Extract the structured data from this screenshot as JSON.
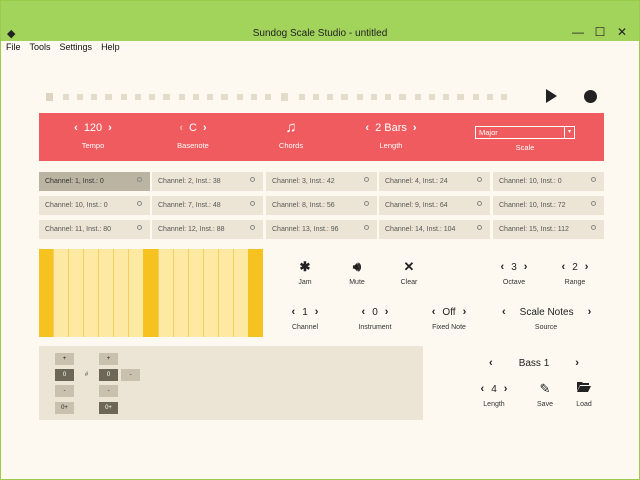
{
  "window": {
    "title": "Sundog Scale Studio - untitled",
    "controls": [
      "—",
      "☐",
      "✕"
    ]
  },
  "menu": [
    "File",
    "Tools",
    "Settings",
    "Help"
  ],
  "redbar": {
    "tempo": {
      "value": "120",
      "label": "Tempo"
    },
    "basenote": {
      "value": "C",
      "label": "Basenote"
    },
    "chords": {
      "label": "Chords"
    },
    "length": {
      "value": "2 Bars",
      "label": "Length"
    },
    "scale": {
      "value": "Major",
      "label": "Scale"
    }
  },
  "channels": [
    "Channel: 1, Inst.: 0",
    "Channel: 2, Inst.: 38",
    "Channel: 3, Inst.: 42",
    "Channel: 4, Inst.: 24",
    "Channel: 10, Inst.: 0",
    "Channel: 10, Inst.: 0",
    "Channel: 7, Inst.: 48",
    "Channel: 8, Inst.: 56",
    "Channel: 9, Inst.: 64",
    "Channel: 10, Inst.: 72",
    "Channel: 11, Inst.: 80",
    "Channel: 12, Inst.: 88",
    "Channel: 13, Inst.: 96",
    "Channel: 14, Inst.: 104",
    "Channel: 15, Inst.: 112"
  ],
  "controls": {
    "jam": "Jam",
    "mute": "Mute",
    "clear": "Clear",
    "octave": {
      "value": "3",
      "label": "Octave"
    },
    "range": {
      "value": "2",
      "label": "Range"
    },
    "channel": {
      "value": "1",
      "label": "Channel"
    },
    "instrument": {
      "value": "0",
      "label": "Instrument"
    },
    "fixed_note": {
      "value": "Off",
      "label": "Fixed Note"
    },
    "source": {
      "value": "Scale Notes",
      "label": "Source"
    }
  },
  "steps": {
    "col1": [
      "+",
      "0",
      "-",
      "0+"
    ],
    "sharp": "#",
    "col2": [
      "+",
      "0",
      "-",
      "0+"
    ],
    "minus_side": "-"
  },
  "preset": {
    "name": "Bass 1",
    "length": {
      "value": "4",
      "label": "Length"
    },
    "save": "Save",
    "load": "Load"
  },
  "colors": {
    "accent": "#ef5b5e",
    "titlebar": "#a2d35b",
    "keys_light": "#fde9a2",
    "keys_dark": "#f6c220"
  }
}
